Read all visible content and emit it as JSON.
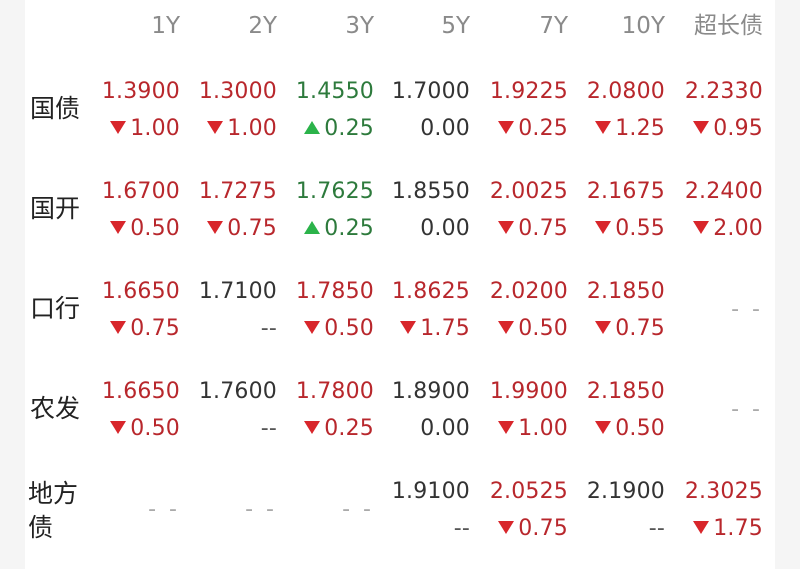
{
  "colors": {
    "up": "#2bb34a",
    "down": "#d8262b",
    "red_text": "#b8272c",
    "green_text": "#2d7a3c"
  },
  "headers": [
    "1Y",
    "2Y",
    "3Y",
    "5Y",
    "7Y",
    "10Y",
    "超长债"
  ],
  "rows": [
    {
      "label": "国债",
      "cells": [
        {
          "value": "1.3900",
          "color": "red",
          "change": "1.00",
          "dir": "down"
        },
        {
          "value": "1.3000",
          "color": "red",
          "change": "1.00",
          "dir": "down"
        },
        {
          "value": "1.4550",
          "color": "green",
          "change": "0.25",
          "dir": "up"
        },
        {
          "value": "1.7000",
          "color": "black",
          "change": "0.00",
          "dir": "none"
        },
        {
          "value": "1.9225",
          "color": "red",
          "change": "0.25",
          "dir": "down"
        },
        {
          "value": "2.0800",
          "color": "red",
          "change": "1.25",
          "dir": "down"
        },
        {
          "value": "2.2330",
          "color": "red",
          "change": "0.95",
          "dir": "down"
        }
      ]
    },
    {
      "label": "国开",
      "cells": [
        {
          "value": "1.6700",
          "color": "red",
          "change": "0.50",
          "dir": "down"
        },
        {
          "value": "1.7275",
          "color": "red",
          "change": "0.75",
          "dir": "down"
        },
        {
          "value": "1.7625",
          "color": "green",
          "change": "0.25",
          "dir": "up"
        },
        {
          "value": "1.8550",
          "color": "black",
          "change": "0.00",
          "dir": "none"
        },
        {
          "value": "2.0025",
          "color": "red",
          "change": "0.75",
          "dir": "down"
        },
        {
          "value": "2.1675",
          "color": "red",
          "change": "0.55",
          "dir": "down"
        },
        {
          "value": "2.2400",
          "color": "red",
          "change": "2.00",
          "dir": "down"
        }
      ]
    },
    {
      "label": "口行",
      "cells": [
        {
          "value": "1.6650",
          "color": "red",
          "change": "0.75",
          "dir": "down"
        },
        {
          "value": "1.7100",
          "color": "black",
          "change": "--",
          "dir": "none"
        },
        {
          "value": "1.7850",
          "color": "red",
          "change": "0.50",
          "dir": "down"
        },
        {
          "value": "1.8625",
          "color": "red",
          "change": "1.75",
          "dir": "down"
        },
        {
          "value": "2.0200",
          "color": "red",
          "change": "0.50",
          "dir": "down"
        },
        {
          "value": "2.1850",
          "color": "red",
          "change": "0.75",
          "dir": "down"
        },
        {
          "empty": "--"
        }
      ]
    },
    {
      "label": "农发",
      "cells": [
        {
          "value": "1.6650",
          "color": "red",
          "change": "0.50",
          "dir": "down"
        },
        {
          "value": "1.7600",
          "color": "black",
          "change": "--",
          "dir": "none"
        },
        {
          "value": "1.7800",
          "color": "red",
          "change": "0.25",
          "dir": "down"
        },
        {
          "value": "1.8900",
          "color": "black",
          "change": "0.00",
          "dir": "none"
        },
        {
          "value": "1.9900",
          "color": "red",
          "change": "1.00",
          "dir": "down"
        },
        {
          "value": "2.1850",
          "color": "red",
          "change": "0.50",
          "dir": "down"
        },
        {
          "empty": "--"
        }
      ]
    },
    {
      "label": "地方债",
      "cells": [
        {
          "empty": "--"
        },
        {
          "empty": "--"
        },
        {
          "empty": "--"
        },
        {
          "value": "1.9100",
          "color": "black",
          "change": "--",
          "dir": "none"
        },
        {
          "value": "2.0525",
          "color": "red",
          "change": "0.75",
          "dir": "down"
        },
        {
          "value": "2.1900",
          "color": "black",
          "change": "--",
          "dir": "none"
        },
        {
          "value": "2.3025",
          "color": "red",
          "change": "1.75",
          "dir": "down"
        }
      ]
    }
  ]
}
